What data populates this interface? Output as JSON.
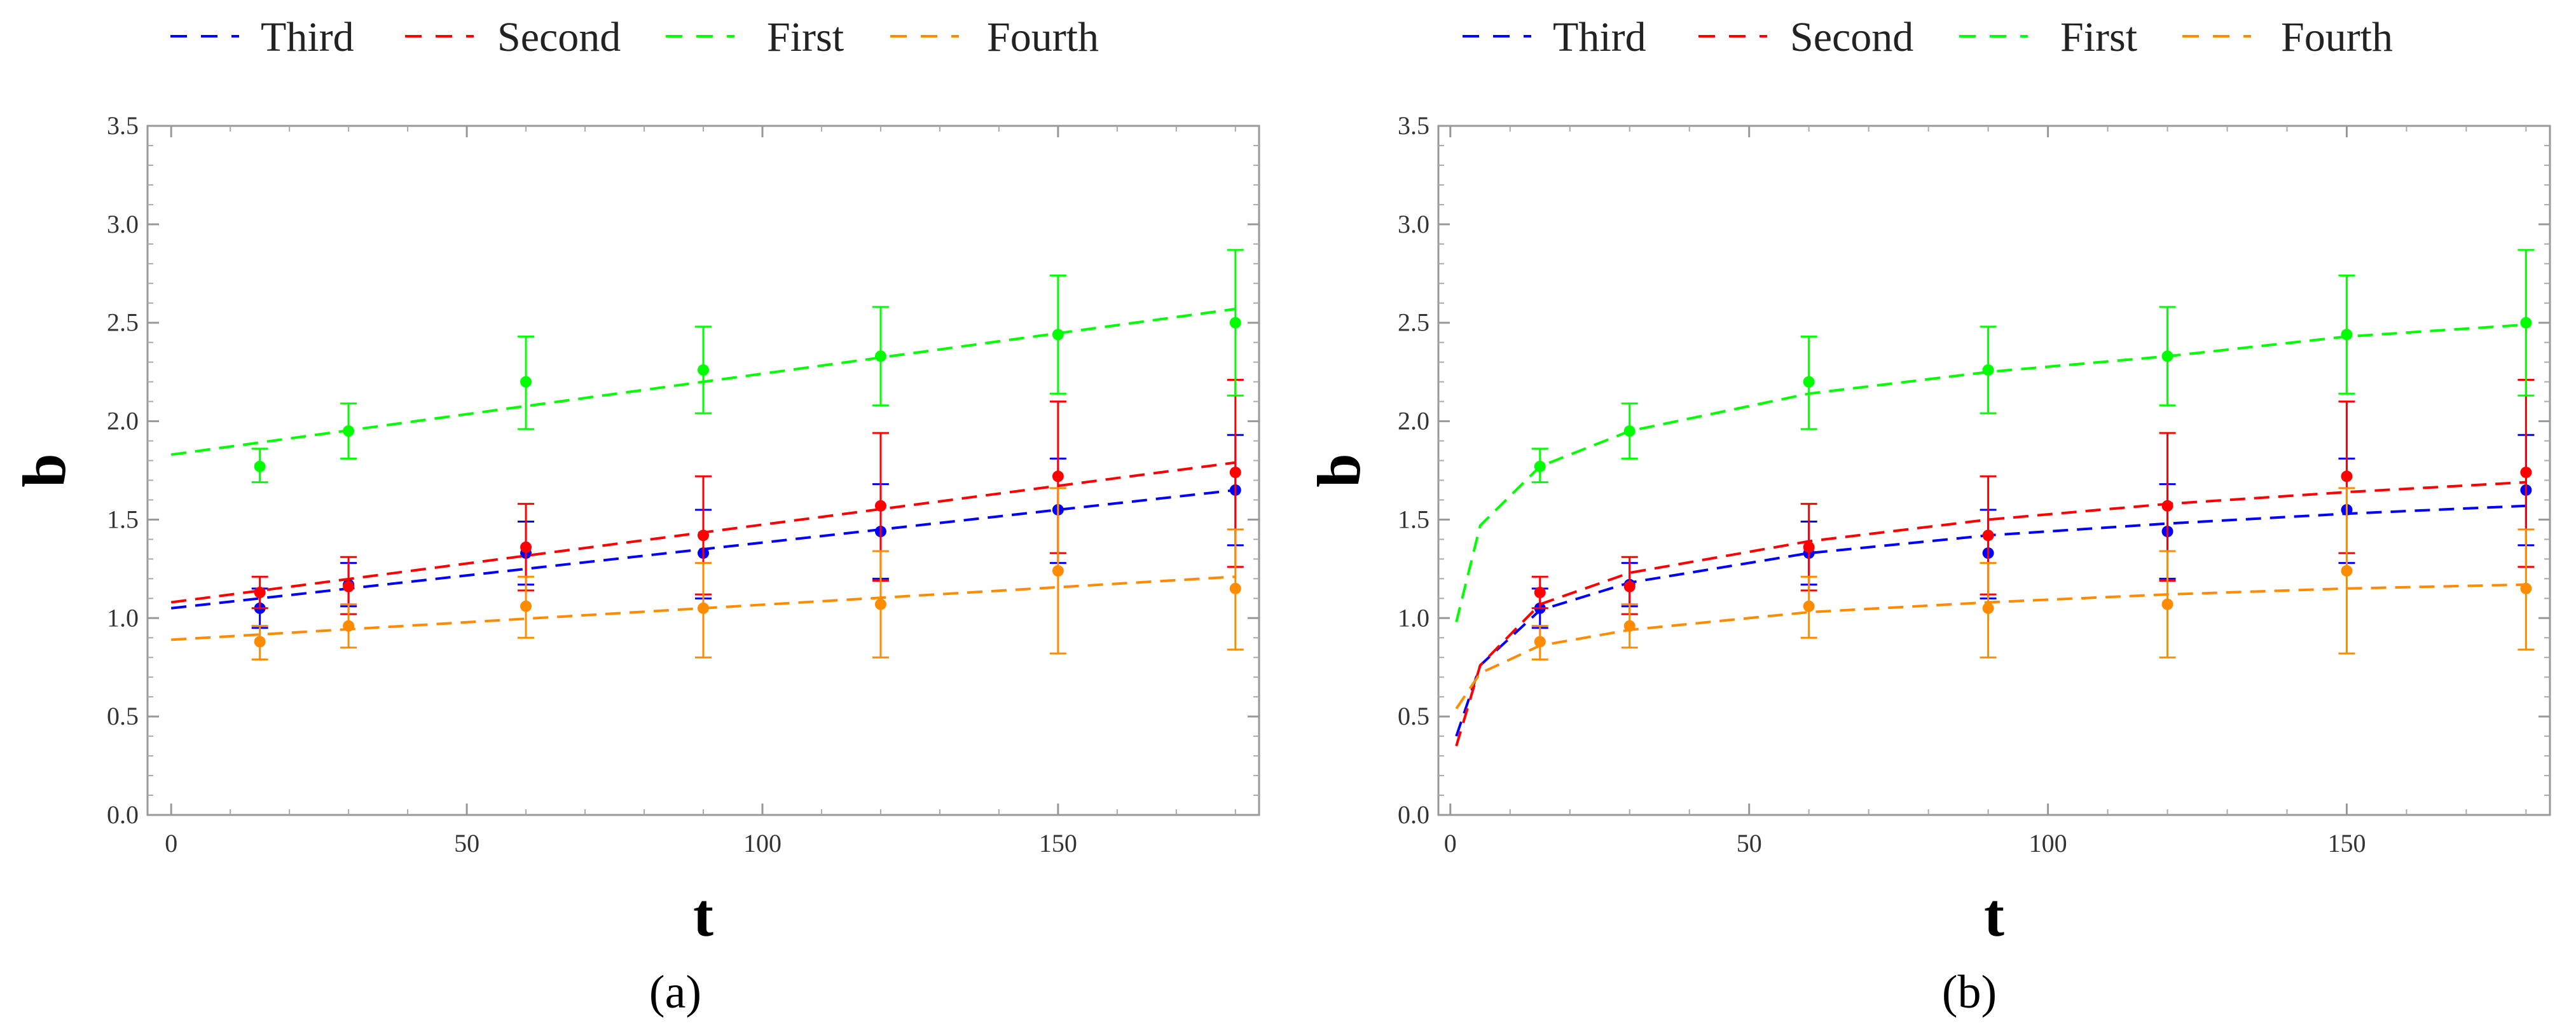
{
  "chart_data": [
    {
      "type": "scatter",
      "panel_label": "(a)",
      "fit_model": "linear",
      "xlabel": "t",
      "ylabel": "b",
      "xlim": [
        -4,
        184
      ],
      "ylim": [
        0,
        3.5
      ],
      "xticks": [
        0,
        50,
        100,
        150
      ],
      "xtick_labels": [
        "0",
        "50",
        "100",
        "150"
      ],
      "yticks": [
        0,
        0.5,
        1,
        1.5,
        2,
        2.5,
        3,
        3.5
      ],
      "ytick_labels": [
        "0.0",
        "0.5",
        "1.0",
        "1.5",
        "2.0",
        "2.5",
        "3.0",
        "3.5"
      ],
      "legend_position": "top",
      "series": [
        {
          "name": "Third",
          "color": "#0000ff",
          "x": [
            15,
            30,
            60,
            90,
            120,
            150,
            180
          ],
          "y": [
            1.05,
            1.17,
            1.33,
            1.33,
            1.44,
            1.55,
            1.65
          ],
          "err_low": [
            0.95,
            1.06,
            1.17,
            1.1,
            1.2,
            1.28,
            1.37
          ],
          "err_high": [
            1.15,
            1.28,
            1.49,
            1.55,
            1.68,
            1.81,
            1.93
          ],
          "fit_points": [
            [
              0,
              1.05
            ],
            [
              180,
              1.65
            ]
          ]
        },
        {
          "name": "Second",
          "color": "#ff0000",
          "x": [
            15,
            30,
            60,
            90,
            120,
            150,
            180
          ],
          "y": [
            1.13,
            1.16,
            1.36,
            1.42,
            1.57,
            1.72,
            1.74
          ],
          "err_low": [
            1.05,
            1.02,
            1.14,
            1.12,
            1.19,
            1.33,
            1.26
          ],
          "err_high": [
            1.21,
            1.31,
            1.58,
            1.72,
            1.94,
            2.1,
            2.21
          ],
          "fit_points": [
            [
              0,
              1.08
            ],
            [
              180,
              1.79
            ]
          ]
        },
        {
          "name": "First",
          "color": "#00ff00",
          "x": [
            15,
            30,
            60,
            90,
            120,
            150,
            180
          ],
          "y": [
            1.77,
            1.95,
            2.2,
            2.26,
            2.33,
            2.44,
            2.5
          ],
          "err_low": [
            1.69,
            1.81,
            1.96,
            2.04,
            2.08,
            2.14,
            2.13
          ],
          "err_high": [
            1.86,
            2.09,
            2.43,
            2.48,
            2.58,
            2.74,
            2.87
          ],
          "fit_points": [
            [
              0,
              1.83
            ],
            [
              180,
              2.57
            ]
          ]
        },
        {
          "name": "Fourth",
          "color": "#ff8c00",
          "x": [
            15,
            30,
            60,
            90,
            120,
            150,
            180
          ],
          "y": [
            0.88,
            0.96,
            1.06,
            1.05,
            1.07,
            1.24,
            1.15
          ],
          "err_low": [
            0.79,
            0.85,
            0.9,
            0.8,
            0.8,
            0.82,
            0.84
          ],
          "err_high": [
            0.96,
            1.07,
            1.21,
            1.28,
            1.34,
            1.66,
            1.45
          ],
          "fit_points": [
            [
              0,
              0.89
            ],
            [
              180,
              1.21
            ]
          ]
        }
      ]
    },
    {
      "type": "scatter",
      "panel_label": "(b)",
      "fit_model": "logarithmic",
      "xlabel": "t",
      "ylabel": "b",
      "xlim": [
        -2,
        184
      ],
      "ylim": [
        0,
        3.5
      ],
      "xticks": [
        0,
        50,
        100,
        150
      ],
      "xtick_labels": [
        "0",
        "50",
        "100",
        "150"
      ],
      "yticks": [
        0,
        0.5,
        1,
        1.5,
        2,
        2.5,
        3,
        3.5
      ],
      "ytick_labels": [
        "0.0",
        "0.5",
        "1.0",
        "1.5",
        "2.0",
        "2.5",
        "3.0",
        "3.5"
      ],
      "legend_position": "top",
      "series": [
        {
          "name": "Third",
          "color": "#0000ff",
          "x": [
            15,
            30,
            60,
            90,
            120,
            150,
            180
          ],
          "y": [
            1.05,
            1.17,
            1.33,
            1.33,
            1.44,
            1.55,
            1.65
          ],
          "err_low": [
            0.95,
            1.06,
            1.17,
            1.1,
            1.2,
            1.28,
            1.37
          ],
          "err_high": [
            1.15,
            1.28,
            1.49,
            1.55,
            1.68,
            1.81,
            1.93
          ],
          "fit_points": [
            [
              1,
              0.4
            ],
            [
              5,
              0.76
            ],
            [
              15,
              1.04
            ],
            [
              30,
              1.18
            ],
            [
              60,
              1.33
            ],
            [
              90,
              1.42
            ],
            [
              120,
              1.48
            ],
            [
              150,
              1.53
            ],
            [
              180,
              1.57
            ]
          ]
        },
        {
          "name": "Second",
          "color": "#ff0000",
          "x": [
            15,
            30,
            60,
            90,
            120,
            150,
            180
          ],
          "y": [
            1.13,
            1.16,
            1.36,
            1.42,
            1.57,
            1.72,
            1.74
          ],
          "err_low": [
            1.05,
            1.02,
            1.14,
            1.12,
            1.19,
            1.33,
            1.26
          ],
          "err_high": [
            1.21,
            1.31,
            1.58,
            1.72,
            1.94,
            2.1,
            2.21
          ],
          "fit_points": [
            [
              1,
              0.35
            ],
            [
              5,
              0.76
            ],
            [
              15,
              1.07
            ],
            [
              30,
              1.23
            ],
            [
              60,
              1.39
            ],
            [
              90,
              1.5
            ],
            [
              120,
              1.58
            ],
            [
              150,
              1.64
            ],
            [
              180,
              1.69
            ]
          ]
        },
        {
          "name": "First",
          "color": "#00ff00",
          "x": [
            15,
            30,
            60,
            90,
            120,
            150,
            180
          ],
          "y": [
            1.77,
            1.95,
            2.2,
            2.26,
            2.33,
            2.44,
            2.5
          ],
          "err_low": [
            1.69,
            1.81,
            1.96,
            2.04,
            2.08,
            2.14,
            2.13
          ],
          "err_high": [
            1.86,
            2.09,
            2.43,
            2.48,
            2.58,
            2.74,
            2.87
          ],
          "fit_points": [
            [
              1,
              0.98
            ],
            [
              5,
              1.47
            ],
            [
              15,
              1.77
            ],
            [
              30,
              1.95
            ],
            [
              60,
              2.14
            ],
            [
              90,
              2.25
            ],
            [
              120,
              2.33
            ],
            [
              150,
              2.43
            ],
            [
              180,
              2.49
            ]
          ]
        },
        {
          "name": "Fourth",
          "color": "#ff8c00",
          "x": [
            15,
            30,
            60,
            90,
            120,
            150,
            180
          ],
          "y": [
            0.88,
            0.96,
            1.06,
            1.05,
            1.07,
            1.24,
            1.15
          ],
          "err_low": [
            0.79,
            0.85,
            0.9,
            0.8,
            0.8,
            0.82,
            0.84
          ],
          "err_high": [
            0.96,
            1.07,
            1.21,
            1.28,
            1.34,
            1.66,
            1.45
          ],
          "fit_points": [
            [
              1,
              0.54
            ],
            [
              5,
              0.72
            ],
            [
              15,
              0.86
            ],
            [
              30,
              0.94
            ],
            [
              60,
              1.03
            ],
            [
              90,
              1.08
            ],
            [
              120,
              1.12
            ],
            [
              150,
              1.15
            ],
            [
              180,
              1.17
            ]
          ]
        }
      ]
    }
  ]
}
